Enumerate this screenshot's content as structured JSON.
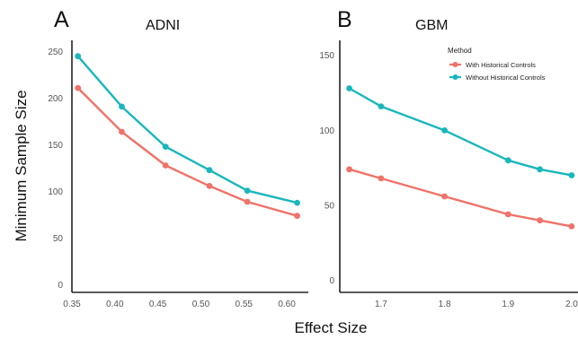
{
  "figure": {
    "ylabel": "Minimum Sample Size",
    "xlabel": "Effect Size"
  },
  "chart_data": [
    {
      "type": "line",
      "panel": "A",
      "title": "ADNI",
      "x": [
        0.357,
        0.408,
        0.459,
        0.51,
        0.554,
        0.612
      ],
      "xticks": [
        0.35,
        0.4,
        0.45,
        0.5,
        0.55,
        0.6
      ],
      "xtick_labels": [
        "0.35",
        "0.40",
        "0.45",
        "0.50",
        "0.55",
        "0.60"
      ],
      "xlim": [
        0.35,
        0.625
      ],
      "yticks": [
        0,
        50,
        100,
        150,
        200,
        250
      ],
      "ytick_labels": [
        "0",
        "50",
        "100",
        "150",
        "200",
        "250"
      ],
      "ylim": [
        -8,
        262
      ],
      "series": [
        {
          "name": "With Historical Controls",
          "color": "#F07268",
          "values": [
            211,
            164,
            128,
            106,
            89,
            74
          ]
        },
        {
          "name": "Without Historical Controls",
          "color": "#19B7BD",
          "values": [
            245,
            191,
            148,
            123,
            101,
            88
          ]
        }
      ]
    },
    {
      "type": "line",
      "panel": "B",
      "title": "GBM",
      "x": [
        1.65,
        1.7,
        1.8,
        1.9,
        1.95,
        2.0
      ],
      "xticks": [
        1.7,
        1.8,
        1.9,
        2.0
      ],
      "xtick_labels": [
        "1.7",
        "1.8",
        "1.9",
        "2.0"
      ],
      "xlim": [
        1.635,
        2.01
      ],
      "yticks": [
        0,
        50,
        100,
        150
      ],
      "ytick_labels": [
        "0",
        "50",
        "100",
        "150"
      ],
      "ylim": [
        -8,
        160
      ],
      "legend": {
        "title": "Method",
        "position": "top-right"
      },
      "series": [
        {
          "name": "With Historical Controls",
          "color": "#F07268",
          "values": [
            74,
            68,
            56,
            44,
            40,
            36
          ]
        },
        {
          "name": "Without Historical Controls",
          "color": "#19B7BD",
          "values": [
            128,
            116,
            100,
            80,
            74,
            70
          ]
        }
      ]
    }
  ]
}
